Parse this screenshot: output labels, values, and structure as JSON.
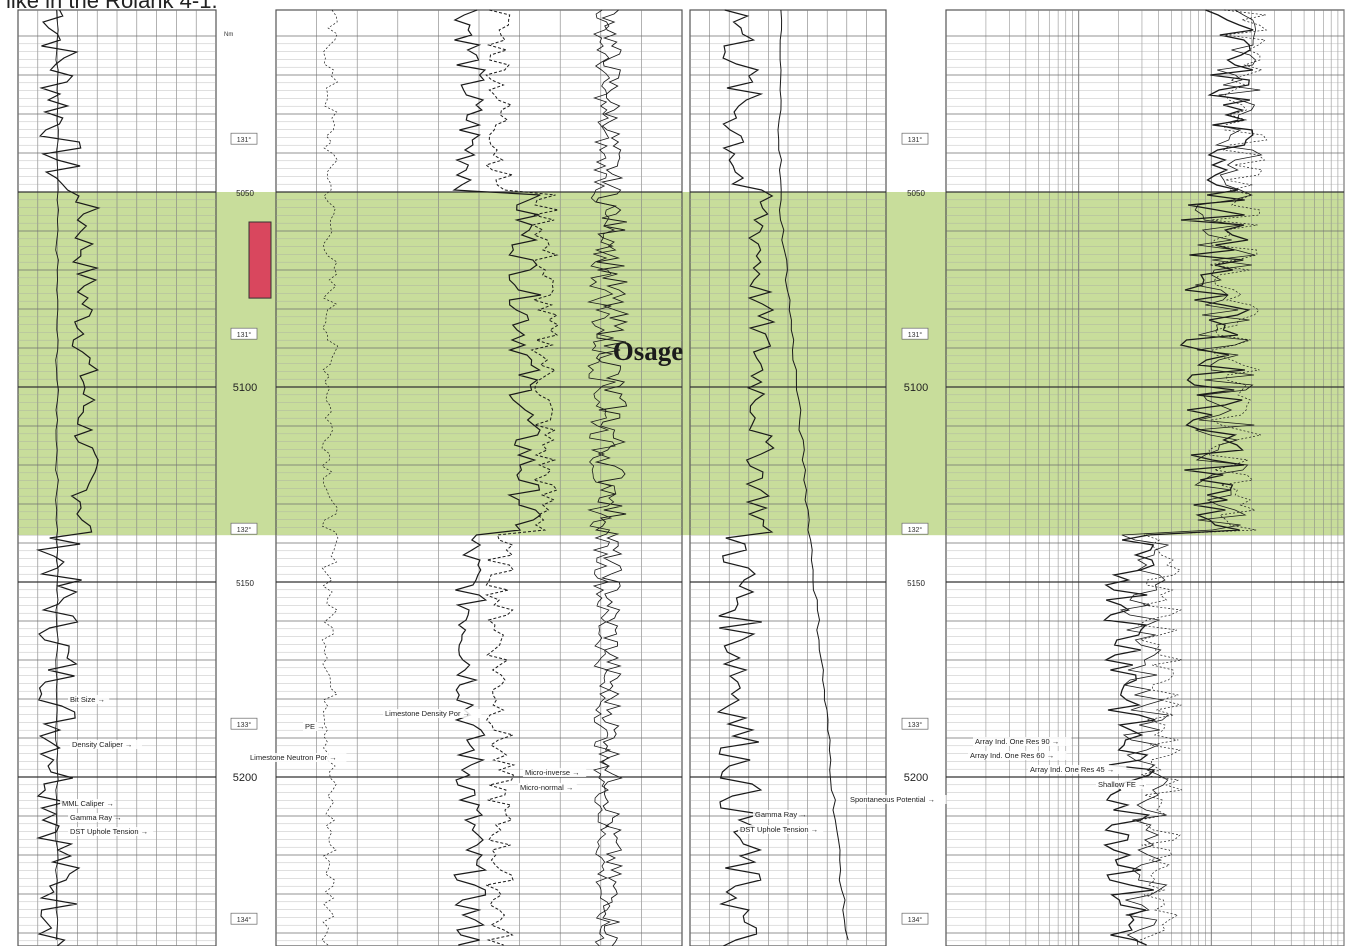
{
  "caption": "like in the Rolank 4-1.",
  "formation": {
    "name": "Osage",
    "top_depth": 5050,
    "base_depth": 5138
  },
  "sample_marker": {
    "top_depth": 5060,
    "base_depth": 5079,
    "color": "#d9475e"
  },
  "colors": {
    "zone_fill": "#b5d27a",
    "grid": "#7f7f7f",
    "curve": "#1a1a1a",
    "shade": "#9a9a9a"
  },
  "depth_track_left": {
    "header": "Nm",
    "depth_labels": [
      {
        "text": "5050",
        "depth": 5050,
        "major": false
      },
      {
        "text": "5100",
        "depth": 5100,
        "major": true
      },
      {
        "text": "5150",
        "depth": 5150,
        "major": false
      },
      {
        "text": "5200",
        "depth": 5200,
        "major": true
      }
    ],
    "time_tags": [
      {
        "text": "131°",
        "depth": 5038
      },
      {
        "text": "131°",
        "depth": 5088
      },
      {
        "text": "132°",
        "depth": 5138
      },
      {
        "text": "133°",
        "depth": 5188
      },
      {
        "text": "134°",
        "depth": 5238
      }
    ]
  },
  "depth_track_right": {
    "depth_labels": [
      {
        "text": "5050",
        "depth": 5050,
        "major": false
      },
      {
        "text": "5100",
        "depth": 5100,
        "major": true
      },
      {
        "text": "5150",
        "depth": 5150,
        "major": false
      },
      {
        "text": "5200",
        "depth": 5200,
        "major": true
      }
    ],
    "time_tags": [
      {
        "text": "131°",
        "depth": 5038
      },
      {
        "text": "131°",
        "depth": 5088
      },
      {
        "text": "132°",
        "depth": 5138
      },
      {
        "text": "133°",
        "depth": 5188
      },
      {
        "text": "134°",
        "depth": 5238
      }
    ]
  },
  "curve_labels": {
    "left_track": [
      "Bit Size",
      "Density Caliper",
      "MML Caliper",
      "Gamma Ray",
      "DST Uphole Tension"
    ],
    "porosity_track": [
      "PE",
      "Limestone Density Por",
      "Limestone Neutron Por",
      "Micro-inverse",
      "Micro-normal"
    ],
    "sp_track": [
      "Gamma Ray",
      "DST Uphole Tension",
      "Spontaneous Potential"
    ],
    "resistivity_track": [
      "Array Ind. One Res 90",
      "Array Ind. One Res 60",
      "Array Ind. One Res 45",
      "Shallow FE"
    ]
  }
}
